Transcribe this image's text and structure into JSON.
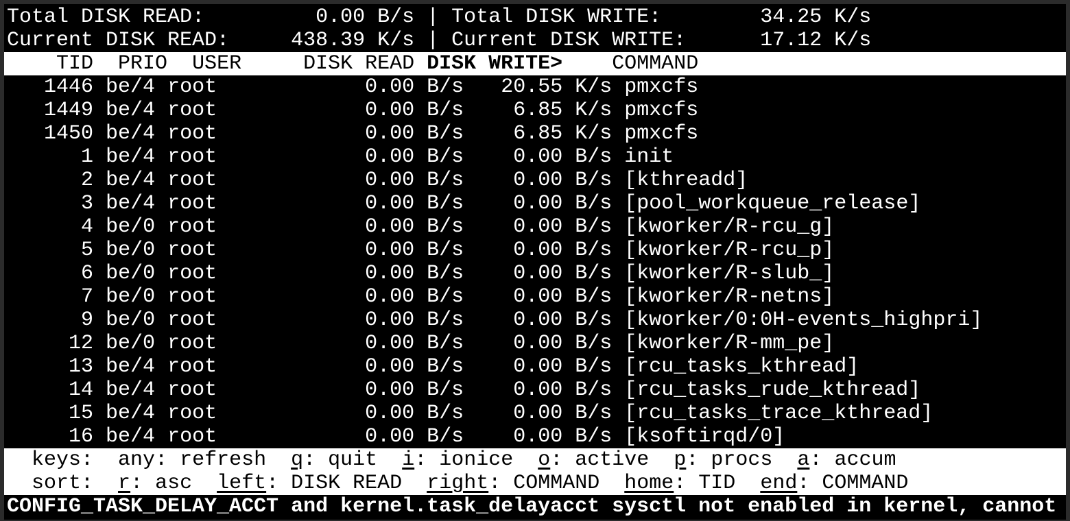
{
  "summary": {
    "total_read_label": "Total DISK READ:",
    "total_read": "0.00 B/s",
    "total_write_label": "Total DISK WRITE:",
    "total_write": "34.25 K/s",
    "current_read_label": "Current DISK READ:",
    "current_read": "438.39 K/s",
    "current_write_label": "Current DISK WRITE:",
    "current_write": "17.12 K/s"
  },
  "columns": {
    "tid": "TID",
    "prio": "PRIO",
    "user": "USER",
    "read": "DISK READ",
    "write": "DISK WRITE>",
    "command": "COMMAND"
  },
  "rows": [
    {
      "tid": "1446",
      "prio": "be/4",
      "user": "root",
      "read": "0.00 B/s",
      "write": "20.55 K/s",
      "command": "pmxcfs"
    },
    {
      "tid": "1449",
      "prio": "be/4",
      "user": "root",
      "read": "0.00 B/s",
      "write": "6.85 K/s",
      "command": "pmxcfs"
    },
    {
      "tid": "1450",
      "prio": "be/4",
      "user": "root",
      "read": "0.00 B/s",
      "write": "6.85 K/s",
      "command": "pmxcfs"
    },
    {
      "tid": "1",
      "prio": "be/4",
      "user": "root",
      "read": "0.00 B/s",
      "write": "0.00 B/s",
      "command": "init"
    },
    {
      "tid": "2",
      "prio": "be/4",
      "user": "root",
      "read": "0.00 B/s",
      "write": "0.00 B/s",
      "command": "[kthreadd]"
    },
    {
      "tid": "3",
      "prio": "be/4",
      "user": "root",
      "read": "0.00 B/s",
      "write": "0.00 B/s",
      "command": "[pool_workqueue_release]"
    },
    {
      "tid": "4",
      "prio": "be/0",
      "user": "root",
      "read": "0.00 B/s",
      "write": "0.00 B/s",
      "command": "[kworker/R-rcu_g]"
    },
    {
      "tid": "5",
      "prio": "be/0",
      "user": "root",
      "read": "0.00 B/s",
      "write": "0.00 B/s",
      "command": "[kworker/R-rcu_p]"
    },
    {
      "tid": "6",
      "prio": "be/0",
      "user": "root",
      "read": "0.00 B/s",
      "write": "0.00 B/s",
      "command": "[kworker/R-slub_]"
    },
    {
      "tid": "7",
      "prio": "be/0",
      "user": "root",
      "read": "0.00 B/s",
      "write": "0.00 B/s",
      "command": "[kworker/R-netns]"
    },
    {
      "tid": "9",
      "prio": "be/0",
      "user": "root",
      "read": "0.00 B/s",
      "write": "0.00 B/s",
      "command": "[kworker/0:0H-events_highpri]"
    },
    {
      "tid": "12",
      "prio": "be/0",
      "user": "root",
      "read": "0.00 B/s",
      "write": "0.00 B/s",
      "command": "[kworker/R-mm_pe]"
    },
    {
      "tid": "13",
      "prio": "be/4",
      "user": "root",
      "read": "0.00 B/s",
      "write": "0.00 B/s",
      "command": "[rcu_tasks_kthread]"
    },
    {
      "tid": "14",
      "prio": "be/4",
      "user": "root",
      "read": "0.00 B/s",
      "write": "0.00 B/s",
      "command": "[rcu_tasks_rude_kthread]"
    },
    {
      "tid": "15",
      "prio": "be/4",
      "user": "root",
      "read": "0.00 B/s",
      "write": "0.00 B/s",
      "command": "[rcu_tasks_trace_kthread]"
    },
    {
      "tid": "16",
      "prio": "be/4",
      "user": "root",
      "read": "0.00 B/s",
      "write": "0.00 B/s",
      "command": "[ksoftirqd/0]"
    }
  ],
  "keys": {
    "label": "keys:",
    "items": [
      {
        "key": "any",
        "text": "refresh",
        "underline": false
      },
      {
        "key": "q",
        "text": "quit",
        "underline": true
      },
      {
        "key": "i",
        "text": "ionice",
        "underline": true
      },
      {
        "key": "o",
        "text": "active",
        "underline": true
      },
      {
        "key": "p",
        "text": "procs",
        "underline": true
      },
      {
        "key": "a",
        "text": "accum",
        "underline": true
      }
    ]
  },
  "sort": {
    "label": "sort:",
    "items": [
      {
        "key": "r",
        "text": "asc",
        "underline": true
      },
      {
        "key": "left",
        "text": "DISK READ",
        "underline": true
      },
      {
        "key": "right",
        "text": "COMMAND",
        "underline": true
      },
      {
        "key": "home",
        "text": "TID",
        "underline": true
      },
      {
        "key": "end",
        "text": "COMMAND",
        "underline": true
      }
    ]
  },
  "status_message": "CONFIG_TASK_DELAY_ACCT and kernel.task_delayacct sysctl not enabled in kernel, cannot",
  "colors": {
    "background": "#000000",
    "foreground": "#ffffff",
    "border": "#2b2b2b"
  }
}
